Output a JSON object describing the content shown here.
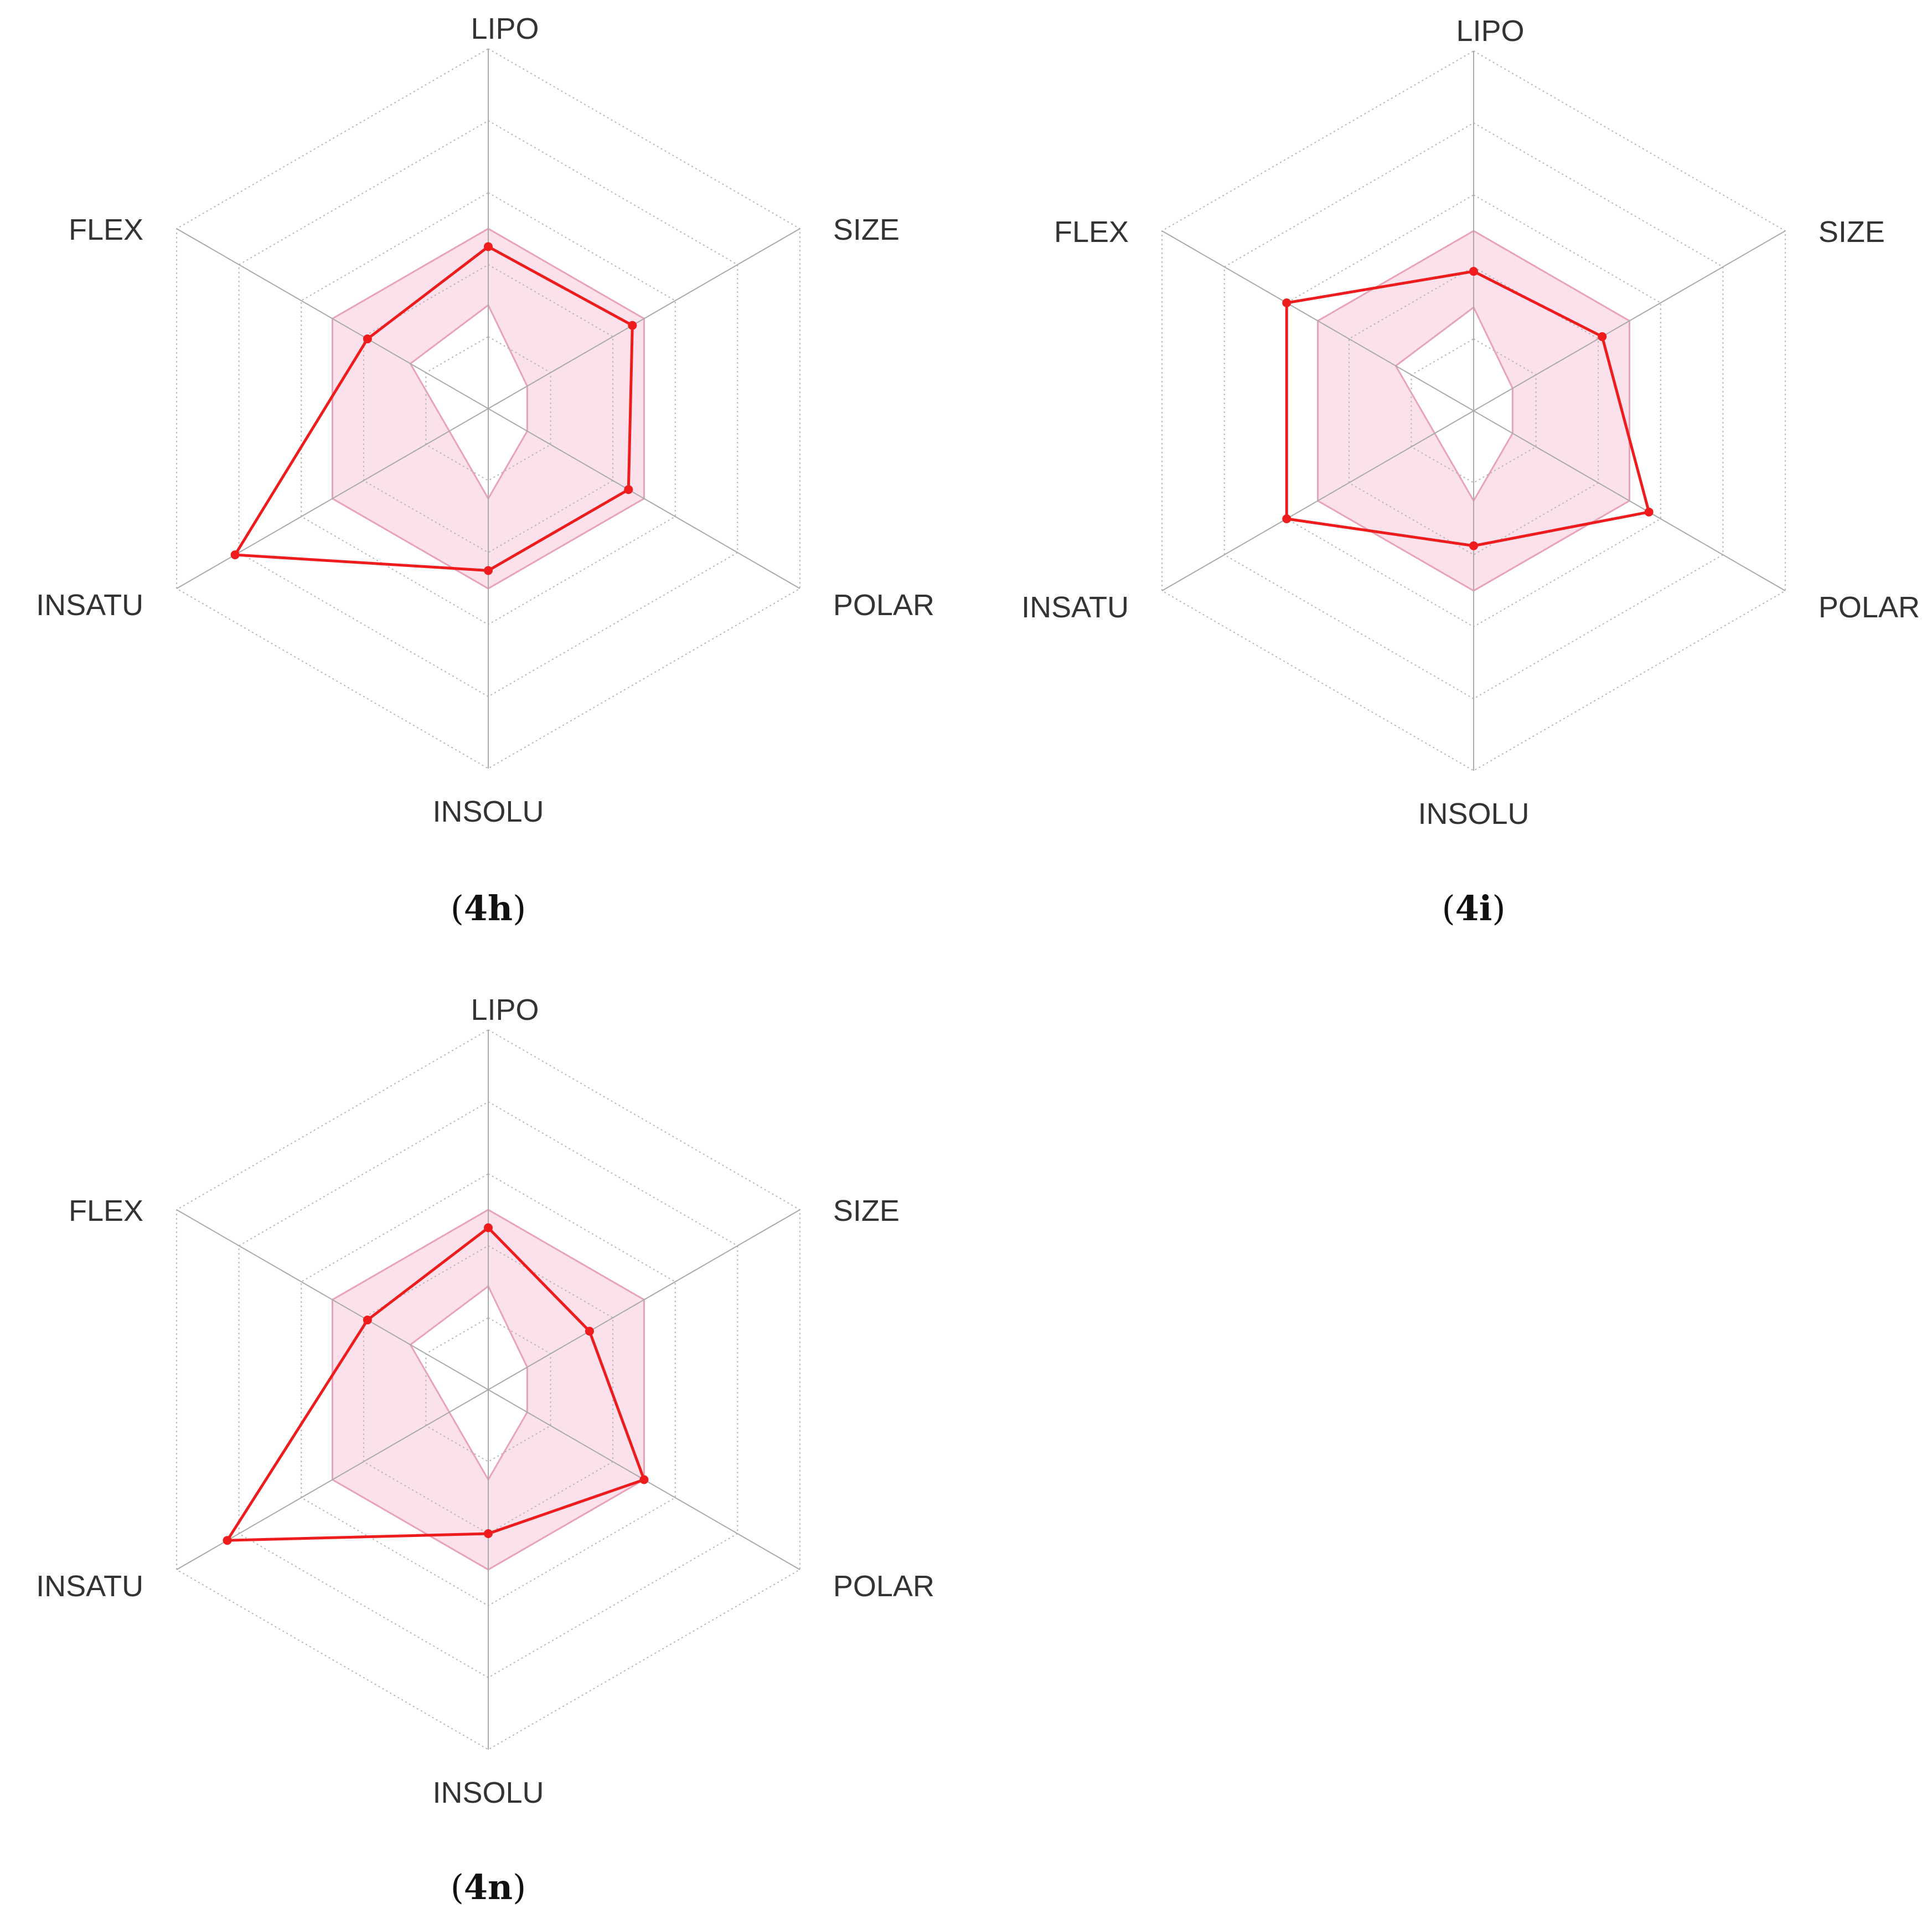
{
  "colors": {
    "series": "#ee1c1c",
    "optimal_fill": "#fbe1ec",
    "optimal_stroke": "#e8a3b6",
    "grid": "#b8b8b8",
    "axis": "#aaaaaa",
    "text": "#333333"
  },
  "chart_data": [
    {
      "type": "radar",
      "caption": {
        "open": "(",
        "label": "4h",
        "close": ")"
      },
      "axes": [
        "LIPO",
        "SIZE",
        "POLAR",
        "INSOLU",
        "INSATU",
        "FLEX"
      ],
      "scale": [
        -3,
        5
      ],
      "grid_levels": 5,
      "optimal_range": {
        "min": [
          -0.7,
          -2.0,
          -2.0,
          -1.0,
          -2.0,
          -1.0
        ],
        "max": [
          1.0,
          1.0,
          1.0,
          1.0,
          1.0,
          1.0
        ]
      },
      "series": [
        {
          "values": [
            0.6,
            0.7,
            0.6,
            0.6,
            3.5,
            0.1
          ]
        }
      ]
    },
    {
      "type": "radar",
      "caption": {
        "open": "(",
        "label": "4i",
        "close": ")"
      },
      "axes": [
        "LIPO",
        "SIZE",
        "POLAR",
        "INSOLU",
        "INSATU",
        "FLEX"
      ],
      "scale": [
        -3,
        5
      ],
      "grid_levels": 5,
      "optimal_range": {
        "min": [
          -0.7,
          -2.0,
          -2.0,
          -1.0,
          -2.0,
          -1.0
        ],
        "max": [
          1.0,
          1.0,
          1.0,
          1.0,
          1.0,
          1.0
        ]
      },
      "series": [
        {
          "values": [
            0.1,
            0.3,
            1.5,
            0.0,
            1.8,
            1.8
          ]
        }
      ]
    },
    {
      "type": "radar",
      "caption": {
        "open": "(",
        "label": "4n",
        "close": ")"
      },
      "axes": [
        "LIPO",
        "SIZE",
        "POLAR",
        "INSOLU",
        "INSATU",
        "FLEX"
      ],
      "scale": [
        -3,
        5
      ],
      "grid_levels": 5,
      "optimal_range": {
        "min": [
          -0.7,
          -2.0,
          -2.0,
          -1.0,
          -2.0,
          -1.0
        ],
        "max": [
          1.0,
          1.0,
          1.0,
          1.0,
          1.0,
          1.0
        ]
      },
      "series": [
        {
          "values": [
            0.6,
            -0.4,
            1.0,
            0.2,
            3.7,
            0.1
          ]
        }
      ]
    }
  ]
}
